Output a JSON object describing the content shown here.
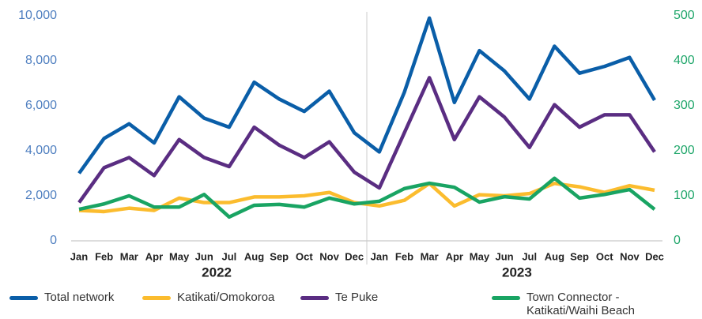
{
  "chart_data": {
    "type": "line",
    "categories": [
      "Jan",
      "Feb",
      "Mar",
      "Apr",
      "May",
      "Jun",
      "Jul",
      "Aug",
      "Sep",
      "Oct",
      "Nov",
      "Dec",
      "Jan",
      "Feb",
      "Mar",
      "Apr",
      "May",
      "Jun",
      "Jul",
      "Aug",
      "Sep",
      "Oct",
      "Nov",
      "Dec"
    ],
    "x_groups": [
      "2022",
      "2023"
    ],
    "series": [
      {
        "name": "Total network",
        "color": "#0a5ea8",
        "values": [
          3000,
          4550,
          5200,
          4350,
          6400,
          5450,
          5050,
          7050,
          6300,
          5750,
          6650,
          4800,
          3950,
          6600,
          9900,
          6150,
          8450,
          7550,
          6300,
          8650,
          7450,
          7750,
          8150,
          6250
        ]
      },
      {
        "name": "Katikati/Omokoroa",
        "color": "#fbbc2e",
        "values": [
          1350,
          1300,
          1450,
          1350,
          1900,
          1700,
          1700,
          1950,
          1950,
          2000,
          2150,
          1700,
          1550,
          1800,
          2550,
          1550,
          2050,
          2000,
          2100,
          2550,
          2400,
          2150,
          2450,
          2250
        ]
      },
      {
        "name": "Te Puke",
        "color": "#5a2d82",
        "values": [
          1700,
          3250,
          3700,
          2900,
          4500,
          3700,
          3300,
          5050,
          4250,
          3700,
          4400,
          3050,
          2350,
          4800,
          7250,
          4500,
          6400,
          5500,
          4150,
          6050,
          5050,
          5600,
          5600,
          3950
        ]
      },
      {
        "name": "Town Connector - Katikati/Waihi Beach",
        "color": "#19a463",
        "axis": "y2",
        "values": [
          70,
          82,
          100,
          75,
          75,
          103,
          53,
          79,
          81,
          75,
          95,
          82,
          88,
          116,
          128,
          119,
          86,
          98,
          93,
          139,
          95,
          103,
          114,
          70
        ]
      }
    ],
    "ylim": [
      0,
      10000
    ],
    "yticks": [
      0,
      {
        "value": 2000,
        "label": "2,000"
      },
      {
        "value": 4000,
        "label": "4,000"
      },
      {
        "value": 6000,
        "label": "6,000"
      },
      {
        "value": 8000,
        "label": "8,000"
      },
      {
        "value": 10000,
        "label": "10,000"
      }
    ],
    "y2lim": [
      0,
      500
    ],
    "y2ticks": [
      0,
      100,
      200,
      300,
      400,
      500
    ],
    "left_axis_color": "#4f7fc0",
    "right_axis_color": "#1fa66a"
  }
}
